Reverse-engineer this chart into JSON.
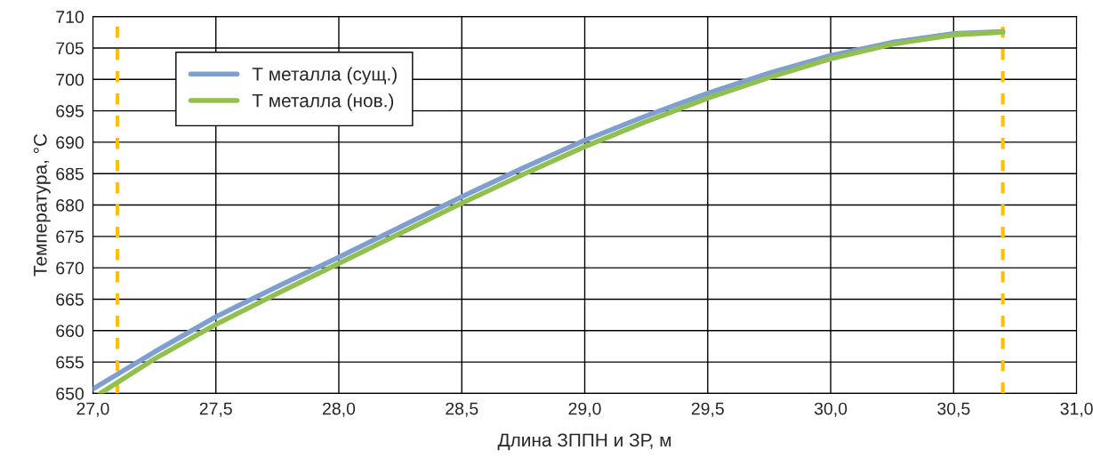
{
  "chart_data": {
    "type": "line",
    "xlabel": "Длина ЗППН и ЗР, м",
    "ylabel": "Температура, °С",
    "series": [
      {
        "name": "Т металла (сущ.)",
        "color": "#7f9fd0",
        "x": [
          27.0,
          27.25,
          27.5,
          27.75,
          28.0,
          28.25,
          28.5,
          28.75,
          29.0,
          29.25,
          29.5,
          29.75,
          30.0,
          30.25,
          30.5,
          30.7
        ],
        "values": [
          650.7,
          656.6,
          662.2,
          667.0,
          671.7,
          676.5,
          681.3,
          685.9,
          690.3,
          694.2,
          697.8,
          701.0,
          703.8,
          705.9,
          707.3,
          707.6
        ]
      },
      {
        "name": "Т металла (нов.)",
        "color": "#92c050",
        "x": [
          27.03,
          27.25,
          27.5,
          27.75,
          28.0,
          28.25,
          28.5,
          28.75,
          29.0,
          29.25,
          29.5,
          29.75,
          30.0,
          30.25,
          30.5,
          30.7
        ],
        "values": [
          650.0,
          655.5,
          661.0,
          665.9,
          670.7,
          675.5,
          680.3,
          684.9,
          689.3,
          693.3,
          697.0,
          700.3,
          703.3,
          705.6,
          707.1,
          707.5
        ]
      }
    ],
    "xlim": [
      27.0,
      31.0
    ],
    "xticks": [
      {
        "value": 27.0,
        "label": "27,0"
      },
      {
        "value": 27.5,
        "label": "27,5"
      },
      {
        "value": 28.0,
        "label": "28,0"
      },
      {
        "value": 28.5,
        "label": "28,5"
      },
      {
        "value": 29.0,
        "label": "29,0"
      },
      {
        "value": 29.5,
        "label": "29,5"
      },
      {
        "value": 30.0,
        "label": "30,0"
      },
      {
        "value": 30.5,
        "label": "30,5"
      },
      {
        "value": 31.0,
        "label": "31,0"
      }
    ],
    "ylim": [
      650,
      710
    ],
    "yticks": [
      650,
      655,
      660,
      665,
      670,
      675,
      680,
      685,
      690,
      695,
      700,
      705,
      710
    ],
    "ref_lines": [
      {
        "axis": "x",
        "value": 27.1,
        "color": "#ffc000",
        "line_style": "dashed"
      },
      {
        "axis": "x",
        "value": 30.7,
        "color": "#ffc000",
        "line_style": "dashed"
      }
    ],
    "grid": true,
    "legend": "top left",
    "line_style": "solid",
    "marker": "none"
  }
}
